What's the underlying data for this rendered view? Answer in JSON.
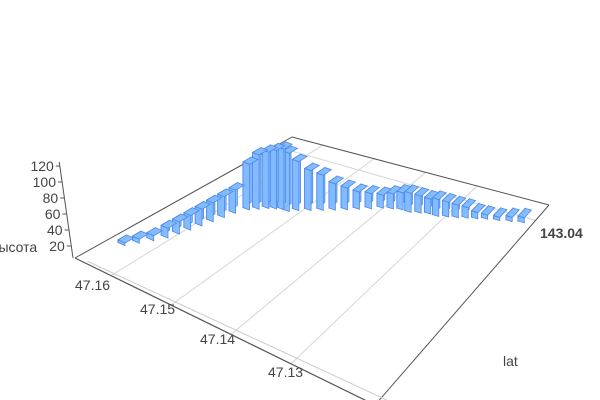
{
  "chart_data": {
    "type": "bar3d",
    "xaxis": {
      "title": "lat",
      "ticks": [
        "47.16",
        "47.15",
        "47.14",
        "47.13"
      ],
      "tick_values": [
        47.16,
        47.15,
        47.14,
        47.13
      ],
      "range": [
        47.116,
        47.166
      ]
    },
    "yaxis": {
      "title": "",
      "ticks": [
        "143.04"
      ],
      "tick_values": [
        143.04
      ],
      "range": [
        142.98,
        143.045
      ]
    },
    "zaxis": {
      "title": "высота",
      "ticks": [
        "20",
        "40",
        "60",
        "80",
        "100",
        "120"
      ],
      "tick_values": [
        20,
        40,
        60,
        80,
        100,
        120
      ],
      "range": [
        0,
        125
      ]
    },
    "grid": true,
    "bar_color": "#7fbcff",
    "bar_edge_color": "#4f86e8",
    "bars": [
      {
        "lat": 47.164,
        "lon": 142.9917,
        "z": 5
      },
      {
        "lat": 47.163,
        "lon": 142.9943,
        "z": 8
      },
      {
        "lat": 47.162,
        "lon": 142.9969,
        "z": 10
      },
      {
        "lat": 47.161,
        "lon": 142.9995,
        "z": 20
      },
      {
        "lat": 47.1605,
        "lon": 143.0021,
        "z": 25
      },
      {
        "lat": 47.16,
        "lon": 143.0047,
        "z": 30
      },
      {
        "lat": 47.1595,
        "lon": 143.0073,
        "z": 35
      },
      {
        "lat": 47.159,
        "lon": 143.0099,
        "z": 40
      },
      {
        "lat": 47.1585,
        "lon": 143.0125,
        "z": 45
      },
      {
        "lat": 47.158,
        "lon": 143.0151,
        "z": 50
      },
      {
        "lat": 47.157,
        "lon": 143.0177,
        "z": 100
      },
      {
        "lat": 47.156,
        "lon": 143.019,
        "z": 120
      },
      {
        "lat": 47.155,
        "lon": 143.0203,
        "z": 125
      },
      {
        "lat": 47.154,
        "lon": 143.021,
        "z": 130
      },
      {
        "lat": 47.153,
        "lon": 143.0216,
        "z": 135
      },
      {
        "lat": 47.152,
        "lon": 143.0216,
        "z": 130
      },
      {
        "lat": 47.151,
        "lon": 143.0229,
        "z": 110
      },
      {
        "lat": 47.1495,
        "lon": 143.0242,
        "z": 90
      },
      {
        "lat": 47.148,
        "lon": 143.0255,
        "z": 80
      },
      {
        "lat": 47.1465,
        "lon": 143.0268,
        "z": 60
      },
      {
        "lat": 47.145,
        "lon": 143.0281,
        "z": 50
      },
      {
        "lat": 47.1435,
        "lon": 143.0294,
        "z": 40
      },
      {
        "lat": 47.142,
        "lon": 143.0307,
        "z": 35
      },
      {
        "lat": 47.1405,
        "lon": 143.032,
        "z": 30
      },
      {
        "lat": 47.139,
        "lon": 143.0327,
        "z": 35
      },
      {
        "lat": 47.1375,
        "lon": 143.0333,
        "z": 40
      },
      {
        "lat": 47.136,
        "lon": 143.0333,
        "z": 45
      },
      {
        "lat": 47.1345,
        "lon": 143.034,
        "z": 40
      },
      {
        "lat": 47.133,
        "lon": 143.0346,
        "z": 35
      },
      {
        "lat": 47.1315,
        "lon": 143.0346,
        "z": 40
      },
      {
        "lat": 47.13,
        "lon": 143.0353,
        "z": 35
      },
      {
        "lat": 47.1285,
        "lon": 143.0359,
        "z": 30
      },
      {
        "lat": 47.127,
        "lon": 143.0366,
        "z": 25
      },
      {
        "lat": 47.1255,
        "lon": 143.0372,
        "z": 15
      },
      {
        "lat": 47.124,
        "lon": 143.0379,
        "z": 10
      },
      {
        "lat": 47.122,
        "lon": 143.0385,
        "z": 8
      },
      {
        "lat": 47.12,
        "lon": 143.0392,
        "z": 10
      },
      {
        "lat": 47.118,
        "lon": 143.0398,
        "z": 12
      }
    ]
  }
}
